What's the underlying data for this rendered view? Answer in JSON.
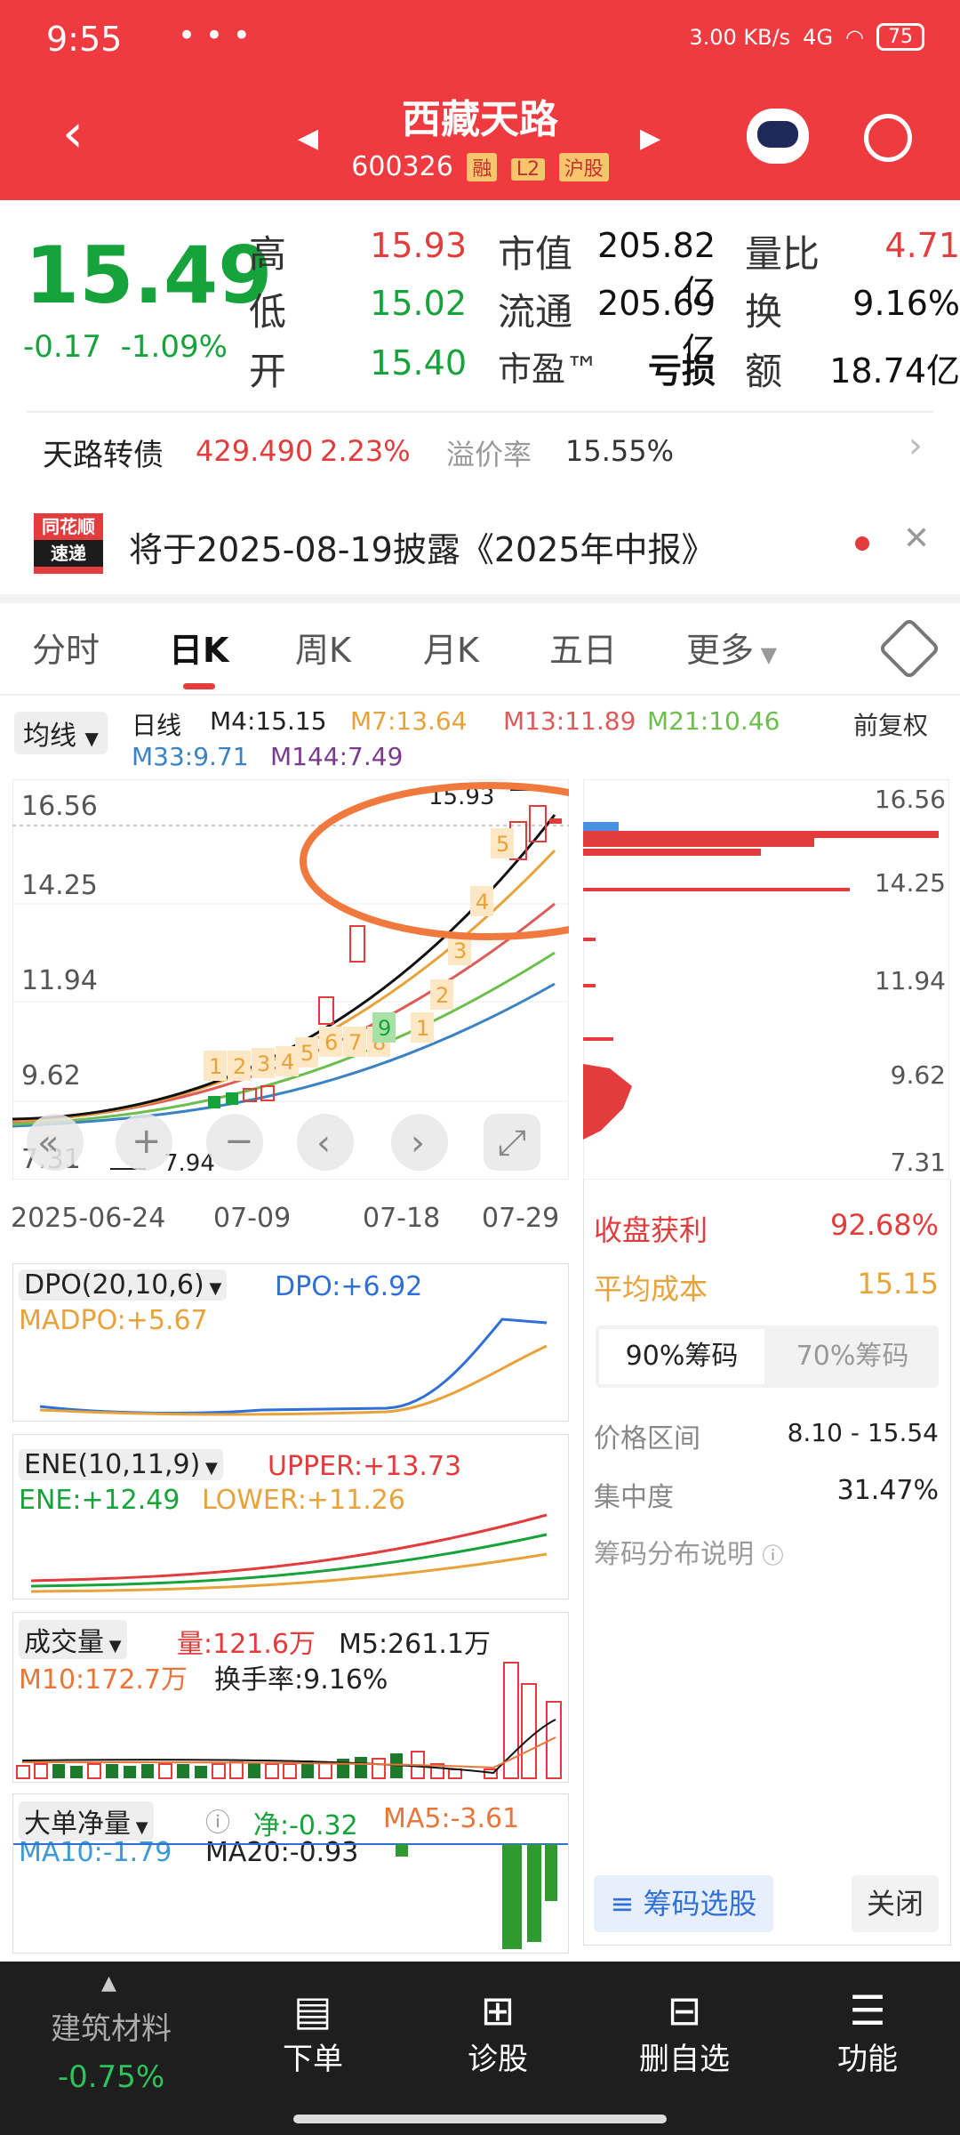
{
  "status_bar": {
    "time": "9:55",
    "net": "3.00 KB/s",
    "signal": "4G",
    "battery": "75"
  },
  "header": {
    "title": "西藏天路",
    "code": "600326",
    "tags": [
      "融",
      "L2",
      "沪股"
    ]
  },
  "quote": {
    "price": "15.49",
    "change": "-0.17",
    "change_pct": "-1.09%",
    "high_label": "高",
    "high": "15.93",
    "low_label": "低",
    "low": "15.02",
    "open_label": "开",
    "open": "15.40",
    "mcap_label": "市值",
    "mcap": "205.82亿",
    "float_label": "流通",
    "float": "205.69亿",
    "pe_label": "市盈™",
    "pe": "亏损",
    "vol_ratio_label": "量比",
    "vol_ratio": "4.71",
    "turnover_label": "换",
    "turnover": "9.16%",
    "amount_label": "额",
    "amount": "18.74亿"
  },
  "bond": {
    "name": "天路转债",
    "price": "429.490",
    "pct": "2.23%",
    "premium_label": "溢价率",
    "premium": "15.55%"
  },
  "notice": {
    "logo_top": "同花顺",
    "logo_bottom": "速递",
    "text": "将于2025-08-19披露《2025年中报》"
  },
  "tabs": [
    "分时",
    "日K",
    "周K",
    "月K",
    "五日",
    "更多"
  ],
  "kline": {
    "ma_button": "均线",
    "period": "日线",
    "m4": "M4:15.15",
    "m7": "M7:13.64",
    "m13": "M13:11.89",
    "m21": "M21:10.46",
    "m33": "M33:9.71",
    "m144": "M144:7.49",
    "adjust": "前复权",
    "y_ticks": [
      "16.56",
      "14.25",
      "11.94",
      "9.62",
      "7.31"
    ],
    "x_ticks": [
      "2025-06-24",
      "07-09",
      "07-18",
      "07-29"
    ],
    "high_mark": "15.93",
    "low_mark": "7.94",
    "td_marks": [
      "1",
      "2",
      "3",
      "4",
      "5",
      "6",
      "7",
      "8",
      "9",
      "1",
      "2",
      "3",
      "4",
      "5"
    ]
  },
  "chip": {
    "y_ticks": [
      "16.56",
      "14.25",
      "11.94",
      "9.62",
      "7.31"
    ],
    "profit_label": "收盘获利",
    "profit": "92.68%",
    "avg_cost_label": "平均成本",
    "avg_cost": "15.15",
    "tab1": "90%筹码",
    "tab2": "70%筹码",
    "range_label": "价格区间",
    "range": "8.10 - 15.54",
    "conc_label": "集中度",
    "conc": "31.47%",
    "help": "筹码分布说明",
    "select_btn": "筹码选股",
    "close_btn": "关闭"
  },
  "dpo": {
    "name": "DPO(20,10,6)",
    "dpo": "DPO:+6.92",
    "madpo": "MADPO:+5.67"
  },
  "ene": {
    "name": "ENE(10,11,9)",
    "upper": "UPPER:+13.73",
    "ene": "ENE:+12.49",
    "lower": "LOWER:+11.26"
  },
  "vol": {
    "name": "成交量",
    "vol": "量:121.6万",
    "m5": "M5:261.1万",
    "m10": "M10:172.7万",
    "turnover": "换手率:9.16%"
  },
  "bigorder": {
    "name": "大单净量",
    "net": "净:-0.32",
    "ma5": "MA5:-3.61",
    "ma10": "MA10:-1.79",
    "ma20": "MA20:-0.93"
  },
  "bottom": {
    "sector": "建筑材料",
    "sector_pct": "-0.75%",
    "items": [
      "下单",
      "诊股",
      "删自选",
      "功能"
    ]
  },
  "colors": {
    "red": "#e23c3c",
    "green": "#16a33b",
    "header": "#ef3a3f",
    "orange": "#e8a23a"
  }
}
